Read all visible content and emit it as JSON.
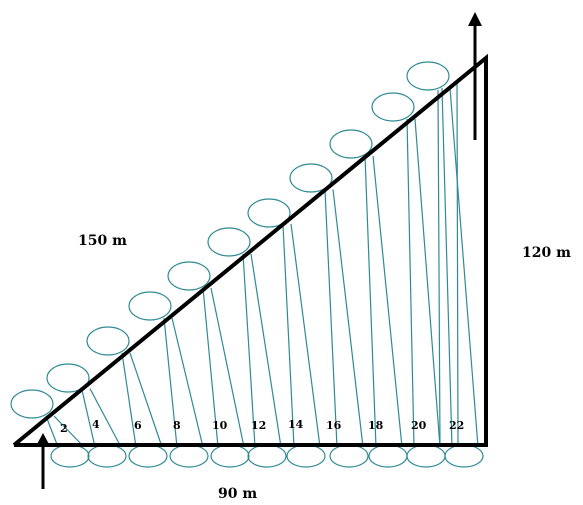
{
  "diagram": {
    "hypotenuse_label": "150 m",
    "vertical_label": "120 m",
    "base_label": "90 m",
    "lap_numbers": [
      "2",
      "4",
      "6",
      "8",
      "10",
      "12",
      "14",
      "16",
      "18",
      "20",
      "22"
    ],
    "colors": {
      "frame": "#000000",
      "rope": "#2f8a96",
      "background": "#ffffff"
    },
    "icons": [
      "up-arrow-icon",
      "up-arrow-icon"
    ]
  }
}
